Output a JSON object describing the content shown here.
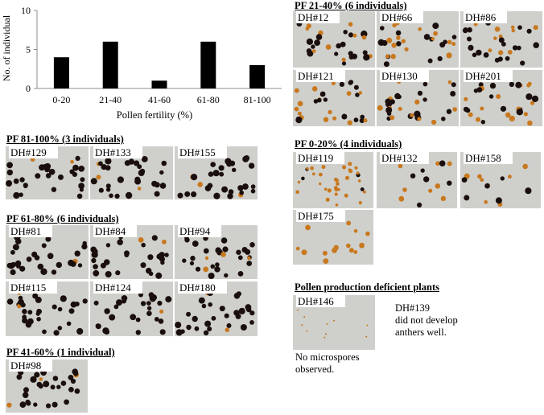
{
  "chart_data": {
    "type": "bar",
    "categories": [
      "0-20",
      "21-40",
      "41-60",
      "61-80",
      "81-100"
    ],
    "values": [
      4,
      6,
      1,
      6,
      3
    ],
    "xlabel": "Pollen fertility (%)",
    "ylabel": "No. of individual",
    "ylim": [
      0,
      10
    ],
    "yticks": [
      0,
      5,
      10
    ],
    "bar_color": "#000000",
    "grid": false
  },
  "groups": {
    "pf81_100": {
      "title": "PF 81-100% (3 individuals)",
      "samples": [
        "DH#129",
        "DH#133",
        "DH#155"
      ]
    },
    "pf61_80": {
      "title": "PF 61-80% (6 individuals)",
      "samples": [
        "DH#81",
        "DH#84",
        "DH#94",
        "DH#115",
        "DH#124",
        "DH#180"
      ]
    },
    "pf41_60": {
      "title": "PF 41-60% (1 individual)",
      "samples": [
        "DH#98"
      ]
    },
    "pf21_40": {
      "title": "PF 21-40% (6 individuals)",
      "samples": [
        "DH#12",
        "DH#66",
        "DH#86",
        "DH#121",
        "DH#130",
        "DH#201"
      ]
    },
    "pf0_20": {
      "title": "PF 0-20% (4 individuals)",
      "samples": [
        "DH#119",
        "DH#132",
        "DH#158",
        "DH#175"
      ]
    },
    "deficient": {
      "title": "Pollen production deficient plants",
      "samples": [
        "DH#146"
      ],
      "no_microspores_note": "No microspores\nobserved.",
      "dh139_note": "DH#139\ndid not develop\nanthers well."
    }
  },
  "colors": {
    "dark_pollen": "#1a0f0d",
    "orange_pollen": "#c8781e",
    "photo_bg": "#cfd0cc"
  }
}
